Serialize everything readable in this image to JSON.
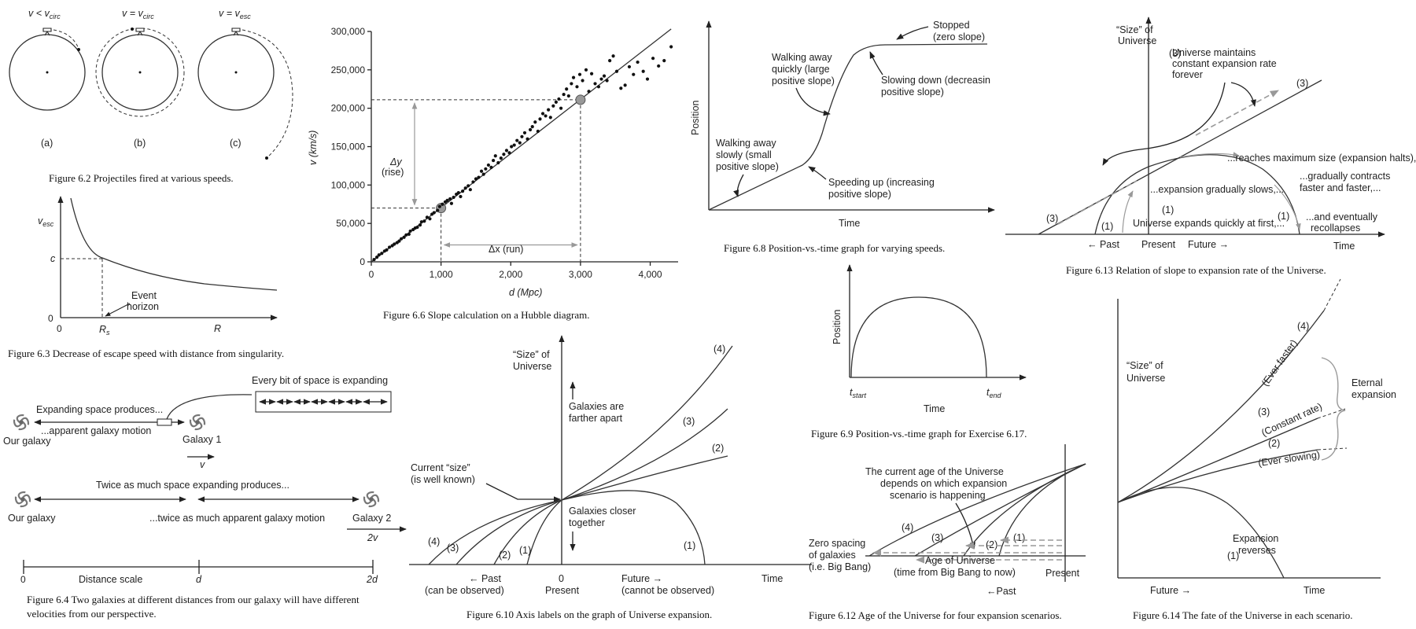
{
  "fig62": {
    "caption": "Figure 6.2  Projectiles fired at various speeds.",
    "panels": [
      {
        "speed": "v < v",
        "sub": "circ",
        "letter": "(a)"
      },
      {
        "speed": "v = v",
        "sub": "circ",
        "letter": "(b)"
      },
      {
        "speed": "v = v",
        "sub": "esc",
        "letter": "(c)"
      }
    ]
  },
  "fig63": {
    "caption": "Figure 6.3  Decrease of escape speed with distance from singularity.",
    "ylabel": "v",
    "ylabel_sub": "esc",
    "c_label": "c",
    "zero_y": "0",
    "zero_x": "0",
    "rs": "R",
    "rs_sub": "s",
    "r": "R",
    "event1": "Event",
    "event2": "horizon"
  },
  "fig64": {
    "caption1": "Figure 6.4  Two galaxies at different distances from our galaxy will have different",
    "caption2": "velocities from our perspective.",
    "every_bit": "Every bit of space is expanding",
    "expanding_produces": "Expanding space produces...",
    "our_galaxy": "Our galaxy",
    "apparent": "...apparent galaxy motion",
    "galaxy1": "Galaxy 1",
    "v1": "v",
    "twice_produces": "Twice as much space expanding produces...",
    "our_galaxy2": "Our galaxy",
    "twice_motion": "...twice as much apparent galaxy motion",
    "galaxy2": "Galaxy 2",
    "v2": "2v",
    "scale_0": "0",
    "scale_label": "Distance scale",
    "scale_d": "d",
    "scale_2d": "2d"
  },
  "fig66": {
    "caption": "Figure 6.6  Slope calculation on a Hubble diagram.",
    "xlabel": "d (Mpc)",
    "ylabel": "v (km/s)",
    "dy1": "Δy",
    "dy2": "(rise)",
    "dx": "Δx (run)"
  },
  "fig68": {
    "caption": "Figure 6.8  Position-vs.-time graph for varying speeds.",
    "ylabel": "Position",
    "xlabel": "Time",
    "stopped1": "Stopped",
    "stopped2": "(zero slope)",
    "quick1": "Walking away",
    "quick2": "quickly (large",
    "quick3": "positive slope)",
    "slowdown1": "Slowing down (decreasin",
    "slowdown2": "positive slope)",
    "slow1": "Walking away",
    "slow2": "slowly (small",
    "slow3": "positive slope)",
    "speedup1": "Speeding up (increasing",
    "speedup2": "positive slope)"
  },
  "fig69": {
    "caption": "Figure 6.9  Position-vs.-time graph for Exercise 6.17.",
    "ylabel": "Position",
    "xlabel": "Time",
    "tstart": "t",
    "tstart_sub": "start",
    "tend": "t",
    "tend_sub": "end"
  },
  "fig610": {
    "caption": "Figure 6.10  Axis labels on the graph of Universe expansion.",
    "ylabel1": "“Size” of",
    "ylabel2": "Universe",
    "farther1": "Galaxies are",
    "farther2": "farther apart",
    "current1": "Current “size”",
    "current2": "(is well known)",
    "closer1": "Galaxies closer",
    "closer2": "together",
    "c4": "(4)",
    "c3": "(3)",
    "c2": "(2)",
    "c1": "(1)",
    "past1": "←  Past",
    "past2": "(can be observed)",
    "zero": "0",
    "present": "Present",
    "future1": "Future  →",
    "future2": "(cannot be observed)",
    "time": "Time"
  },
  "fig612": {
    "caption": "Figure 6.12  Age of the Universe for four expansion scenarios.",
    "note1": "The current age of the Universe",
    "note2": "depends on which expansion",
    "note3": "scenario is happening",
    "zero1": "Zero spacing",
    "zero2": "of galaxies",
    "zero3": "(i.e. Big Bang)",
    "age1": "Age of Universe",
    "age2": "(time from Big Bang to now)",
    "present": "Present",
    "past": "←Past",
    "c4": "(4)",
    "c3": "(3)",
    "c2": "(2)",
    "c1": "(1)"
  },
  "fig613": {
    "caption": "Figure 6.13  Relation of slope to expansion rate of the Universe.",
    "ylabel1": "“Size” of",
    "ylabel2": "Universe",
    "const1": "Universe maintains",
    "const2": "constant expansion rate",
    "const3": "forever",
    "max": "...reaches maximum size (expansion halts),...",
    "contracts1": "...gradually contracts",
    "contracts2": "faster and faster,...",
    "slows": "...expansion gradually slows,...",
    "quickly": "Universe expands quickly at first,...",
    "recollapse1": "...and eventually",
    "recollapse2": "recollapses",
    "past": "←  Past",
    "present": "Present",
    "future": "Future  →",
    "time": "Time",
    "c3a": "(3)",
    "c3b": "(3)",
    "c3c": "(3)",
    "c1a": "(1)",
    "c1b": "(1)",
    "c1c": "(1)"
  },
  "fig614": {
    "caption": "Figure 6.14  The fate of the Universe in each scenario.",
    "ylabel1": "“Size” of",
    "ylabel2": "Universe",
    "c4": "(4)",
    "ever_faster": "(Ever faster)",
    "c3": "(3)",
    "constant": "(Constant rate)",
    "c2": "(2)",
    "ever_slowing": "(Ever slowing)",
    "eternal1": "Eternal",
    "eternal2": "expansion",
    "rev1": "Expansion",
    "rev2": "reverses",
    "c1": "(1)",
    "future": "Future  →",
    "time": "Time"
  },
  "chart_data": {
    "type": "scatter",
    "title": "",
    "xlabel": "d (Mpc)",
    "ylabel": "v (km/s)",
    "xlim": [
      0,
      4400
    ],
    "ylim": [
      0,
      300000
    ],
    "xticks": [
      0,
      1000,
      2000,
      3000,
      4000
    ],
    "xtick_labels": [
      "0",
      "1,000",
      "2,000",
      "3,000",
      "4,000"
    ],
    "yticks": [
      0,
      50000,
      100000,
      150000,
      200000,
      250000,
      300000
    ],
    "ytick_labels": [
      "0",
      "50,000",
      "100,000",
      "150,000",
      "200,000",
      "250,000",
      "300,000"
    ],
    "fit_line": {
      "slope": 70.5,
      "intercept": 0
    },
    "slope_points": [
      [
        1000,
        70000
      ],
      [
        3000,
        211000
      ]
    ],
    "points": [
      [
        40,
        3000
      ],
      [
        80,
        6000
      ],
      [
        110,
        9000
      ],
      [
        150,
        11000
      ],
      [
        190,
        14000
      ],
      [
        220,
        15500
      ],
      [
        260,
        19000
      ],
      [
        300,
        21000
      ],
      [
        330,
        23000
      ],
      [
        370,
        25000
      ],
      [
        400,
        27000
      ],
      [
        430,
        30000
      ],
      [
        470,
        32000
      ],
      [
        500,
        35000
      ],
      [
        540,
        36000
      ],
      [
        560,
        40000
      ],
      [
        600,
        42000
      ],
      [
        630,
        44000
      ],
      [
        660,
        45000
      ],
      [
        700,
        48000
      ],
      [
        720,
        52000
      ],
      [
        760,
        53000
      ],
      [
        800,
        58000
      ],
      [
        840,
        56000
      ],
      [
        870,
        62000
      ],
      [
        900,
        64000
      ],
      [
        950,
        67000
      ],
      [
        980,
        72000
      ],
      [
        1020,
        75000
      ],
      [
        1060,
        78000
      ],
      [
        1090,
        80000
      ],
      [
        1130,
        82000
      ],
      [
        1150,
        76000
      ],
      [
        1180,
        84000
      ],
      [
        1220,
        88000
      ],
      [
        1250,
        90000
      ],
      [
        1280,
        85000
      ],
      [
        1310,
        92000
      ],
      [
        1350,
        96000
      ],
      [
        1390,
        99000
      ],
      [
        1420,
        94000
      ],
      [
        1460,
        104000
      ],
      [
        1500,
        108000
      ],
      [
        1540,
        110000
      ],
      [
        1580,
        118000
      ],
      [
        1610,
        114000
      ],
      [
        1640,
        121000
      ],
      [
        1680,
        126000
      ],
      [
        1720,
        123000
      ],
      [
        1750,
        132000
      ],
      [
        1780,
        138000
      ],
      [
        1820,
        129000
      ],
      [
        1860,
        135000
      ],
      [
        1900,
        140000
      ],
      [
        1940,
        145000
      ],
      [
        1980,
        142000
      ],
      [
        2010,
        150000
      ],
      [
        2050,
        152000
      ],
      [
        2090,
        158000
      ],
      [
        2130,
        155000
      ],
      [
        2160,
        163000
      ],
      [
        2200,
        168000
      ],
      [
        2240,
        160000
      ],
      [
        2280,
        172000
      ],
      [
        2310,
        176000
      ],
      [
        2350,
        182000
      ],
      [
        2390,
        170000
      ],
      [
        2420,
        186000
      ],
      [
        2460,
        193000
      ],
      [
        2500,
        190000
      ],
      [
        2540,
        198000
      ],
      [
        2570,
        188000
      ],
      [
        2610,
        203000
      ],
      [
        2650,
        208000
      ],
      [
        2690,
        212000
      ],
      [
        2720,
        200000
      ],
      [
        2760,
        218000
      ],
      [
        2800,
        225000
      ],
      [
        2830,
        216000
      ],
      [
        2870,
        232000
      ],
      [
        2900,
        240000
      ],
      [
        2950,
        228000
      ],
      [
        2990,
        244000
      ],
      [
        3030,
        236000
      ],
      [
        3080,
        250000
      ],
      [
        3120,
        222000
      ],
      [
        3160,
        245000
      ],
      [
        3210,
        232000
      ],
      [
        3260,
        228000
      ],
      [
        3300,
        238000
      ],
      [
        3340,
        242000
      ],
      [
        3380,
        236000
      ],
      [
        3420,
        262000
      ],
      [
        3470,
        268000
      ],
      [
        3520,
        248000
      ],
      [
        3580,
        226000
      ],
      [
        3640,
        230000
      ],
      [
        3700,
        254000
      ],
      [
        3760,
        244000
      ],
      [
        3820,
        260000
      ],
      [
        3900,
        248000
      ],
      [
        3960,
        238000
      ],
      [
        4040,
        265000
      ],
      [
        4120,
        255000
      ],
      [
        4200,
        262000
      ],
      [
        4300,
        280000
      ]
    ]
  }
}
